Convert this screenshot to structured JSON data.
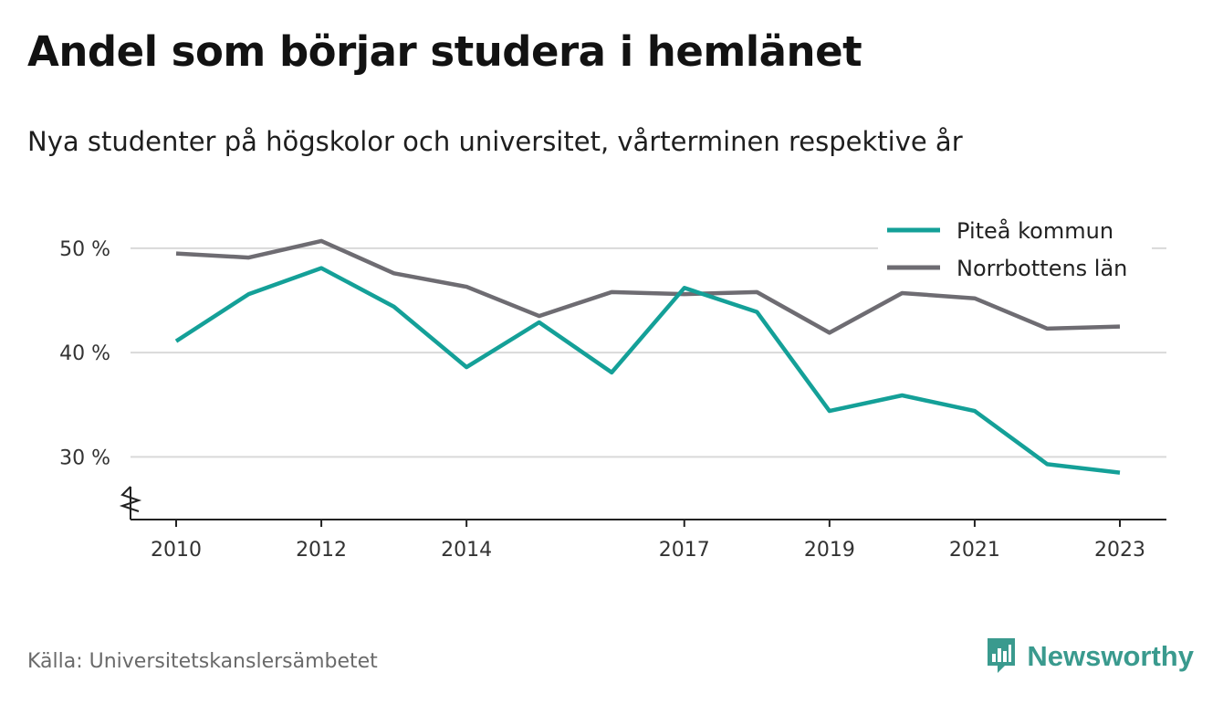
{
  "title": "Andel som börjar studera i hemlänet",
  "subtitle": "Nya studenter på högskolor och universitet, vårterminen respektive år",
  "source": "Källa: Universitetskanslersämbetet",
  "brand": {
    "name": "Newsworthy",
    "icon": "newsworthy-logo-icon",
    "color": "#3a9a8e"
  },
  "chart_data": {
    "type": "line",
    "x": [
      2010,
      2011,
      2012,
      2013,
      2014,
      2015,
      2016,
      2017,
      2018,
      2019,
      2020,
      2021,
      2022,
      2023
    ],
    "x_ticks": [
      "2010",
      "2012",
      "2014",
      "2017",
      "2019",
      "2021",
      "2023"
    ],
    "y_ticks": [
      "30 %",
      "40 %",
      "50 %"
    ],
    "ylim": [
      24,
      52
    ],
    "grid": true,
    "legend_position": "top-right",
    "axis_break": true,
    "series": [
      {
        "name": "Piteå kommun",
        "color": "#14a098",
        "values": [
          41.1,
          45.6,
          48.1,
          44.4,
          38.6,
          42.9,
          38.1,
          46.2,
          43.9,
          34.4,
          35.9,
          34.4,
          29.3,
          28.5
        ]
      },
      {
        "name": "Norrbottens län",
        "color": "#6e6c72",
        "values": [
          49.5,
          49.1,
          50.7,
          47.6,
          46.3,
          43.5,
          45.8,
          45.6,
          45.8,
          41.9,
          45.7,
          45.2,
          42.3,
          42.5
        ]
      }
    ]
  }
}
